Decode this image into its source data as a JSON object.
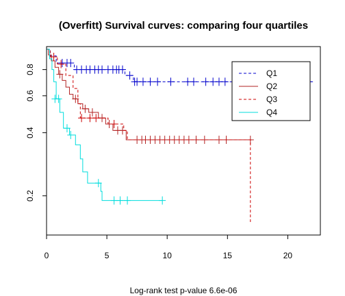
{
  "chart_data": {
    "type": "line",
    "title": "(Overfitt) Survival curves: comparing four quartiles",
    "xlabel": "Log-rank test p-value  6.6e-06",
    "ylabel": "",
    "xlim": [
      0,
      22.7
    ],
    "ylim": [
      0.13,
      1.03
    ],
    "y_scale": "log",
    "x_ticks": [
      "0",
      "5",
      "10",
      "15",
      "20"
    ],
    "y_ticks": [
      "0.2",
      "0.4",
      "0.6",
      "0.8"
    ],
    "grid": false,
    "legend_position": "top-right",
    "series": [
      {
        "name": "Q1",
        "color": "#0000cc",
        "dash": "dashed",
        "steps": [
          [
            0,
            1.0
          ],
          [
            0.3,
            0.93
          ],
          [
            0.8,
            0.86
          ],
          [
            2.3,
            0.8
          ],
          [
            6.5,
            0.75
          ],
          [
            7.2,
            0.7
          ],
          [
            22,
            0.7
          ]
        ],
        "censored": [
          [
            1.3,
            0.86
          ],
          [
            1.7,
            0.86
          ],
          [
            2.0,
            0.86
          ],
          [
            2.5,
            0.8
          ],
          [
            2.9,
            0.8
          ],
          [
            3.3,
            0.8
          ],
          [
            3.6,
            0.8
          ],
          [
            4.0,
            0.8
          ],
          [
            4.3,
            0.8
          ],
          [
            4.6,
            0.8
          ],
          [
            5.1,
            0.8
          ],
          [
            5.5,
            0.8
          ],
          [
            5.8,
            0.8
          ],
          [
            6.0,
            0.8
          ],
          [
            6.3,
            0.8
          ],
          [
            6.9,
            0.75
          ],
          [
            7.3,
            0.7
          ],
          [
            7.5,
            0.7
          ],
          [
            8.0,
            0.7
          ],
          [
            8.6,
            0.7
          ],
          [
            9.2,
            0.7
          ],
          [
            10.3,
            0.7
          ],
          [
            11.7,
            0.7
          ],
          [
            12.2,
            0.7
          ],
          [
            13.2,
            0.7
          ],
          [
            13.8,
            0.7
          ],
          [
            14.3,
            0.7
          ],
          [
            14.8,
            0.7
          ],
          [
            21.8,
            0.7
          ]
        ]
      },
      {
        "name": "Q2",
        "color": "#b22222",
        "dash": "solid",
        "steps": [
          [
            0,
            1.0
          ],
          [
            0.15,
            0.94
          ],
          [
            0.4,
            0.88
          ],
          [
            0.7,
            0.82
          ],
          [
            1.0,
            0.76
          ],
          [
            1.3,
            0.71
          ],
          [
            1.6,
            0.66
          ],
          [
            1.9,
            0.61
          ],
          [
            2.2,
            0.58
          ],
          [
            2.6,
            0.55
          ],
          [
            3.0,
            0.52
          ],
          [
            3.5,
            0.5
          ],
          [
            4.3,
            0.47
          ],
          [
            4.9,
            0.44
          ],
          [
            5.5,
            0.41
          ],
          [
            6.6,
            0.37
          ],
          [
            17.0,
            0.37
          ]
        ],
        "censored": [
          [
            1.1,
            0.76
          ],
          [
            2.4,
            0.58
          ],
          [
            3.2,
            0.52
          ],
          [
            3.8,
            0.5
          ],
          [
            4.6,
            0.47
          ],
          [
            5.2,
            0.44
          ],
          [
            5.9,
            0.41
          ],
          [
            6.3,
            0.41
          ],
          [
            7.5,
            0.37
          ],
          [
            7.9,
            0.37
          ],
          [
            8.2,
            0.37
          ],
          [
            8.6,
            0.37
          ],
          [
            9.0,
            0.37
          ],
          [
            9.4,
            0.37
          ],
          [
            9.8,
            0.37
          ],
          [
            10.2,
            0.37
          ],
          [
            10.6,
            0.37
          ],
          [
            11.0,
            0.37
          ],
          [
            11.4,
            0.37
          ],
          [
            11.8,
            0.37
          ],
          [
            12.4,
            0.37
          ],
          [
            13.1,
            0.37
          ],
          [
            14.3,
            0.37
          ],
          [
            14.9,
            0.37
          ],
          [
            16.9,
            0.37
          ]
        ]
      },
      {
        "name": "Q3",
        "color": "#cc0000",
        "dash": "dashed",
        "steps": [
          [
            0,
            1.0
          ],
          [
            0.3,
            0.92
          ],
          [
            0.9,
            0.85
          ],
          [
            1.6,
            0.75
          ],
          [
            2.2,
            0.65
          ],
          [
            2.6,
            0.55
          ],
          [
            2.8,
            0.47
          ],
          [
            4.4,
            0.47
          ],
          [
            5.1,
            0.44
          ],
          [
            6.4,
            0.41
          ],
          [
            6.7,
            0.37
          ],
          [
            16.9,
            0.37
          ],
          [
            16.9,
            0.15
          ]
        ],
        "censored": [
          [
            0.6,
            0.92
          ],
          [
            1.2,
            0.85
          ],
          [
            2.9,
            0.47
          ],
          [
            3.6,
            0.47
          ],
          [
            4.1,
            0.47
          ],
          [
            5.6,
            0.44
          ]
        ]
      },
      {
        "name": "Q4",
        "color": "#00dddd",
        "dash": "solid",
        "steps": [
          [
            0,
            1.0
          ],
          [
            0.25,
            0.9
          ],
          [
            0.45,
            0.8
          ],
          [
            0.6,
            0.7
          ],
          [
            0.8,
            0.58
          ],
          [
            1.1,
            0.5
          ],
          [
            1.4,
            0.42
          ],
          [
            1.9,
            0.39
          ],
          [
            2.4,
            0.35
          ],
          [
            2.8,
            0.3
          ],
          [
            3.0,
            0.26
          ],
          [
            3.4,
            0.23
          ],
          [
            4.5,
            0.21
          ],
          [
            4.6,
            0.19
          ],
          [
            9.6,
            0.19
          ]
        ],
        "censored": [
          [
            0.7,
            0.58
          ],
          [
            1.0,
            0.58
          ],
          [
            1.7,
            0.42
          ],
          [
            2.0,
            0.39
          ],
          [
            4.3,
            0.23
          ],
          [
            5.6,
            0.19
          ],
          [
            6.1,
            0.19
          ],
          [
            6.7,
            0.19
          ],
          [
            9.6,
            0.19
          ]
        ]
      }
    ]
  }
}
